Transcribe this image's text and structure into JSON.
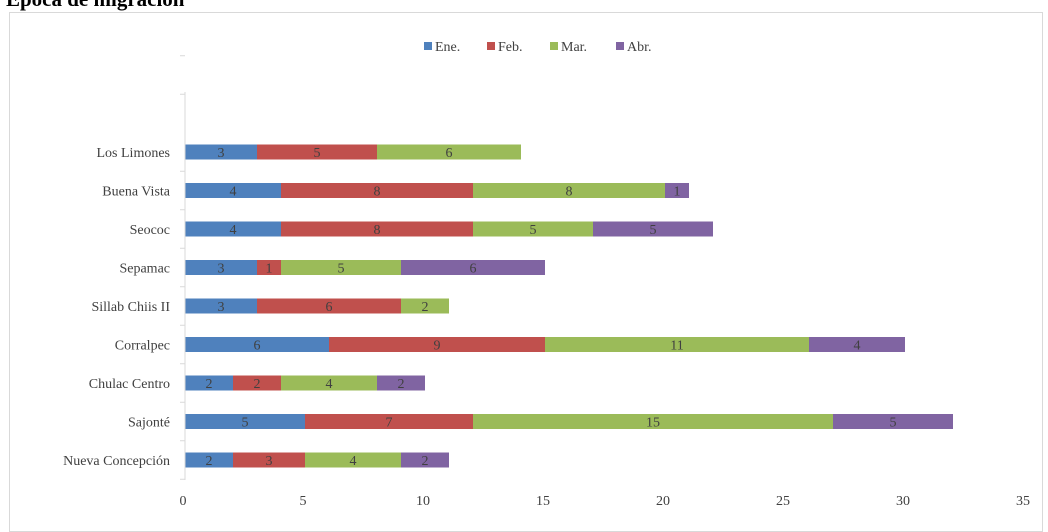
{
  "chart_data": {
    "type": "bar",
    "orientation": "horizontal",
    "stacked": true,
    "title": "Época de migración",
    "categories": [
      "Los Limones",
      "Buena Vista",
      "Seococ",
      "Sepamac",
      "Sillab Chiis II",
      "Corralpec",
      "Chulac Centro",
      "Sajonté",
      "Nueva Concepción"
    ],
    "series": [
      {
        "name": "Ene.",
        "color": "#4f81bd",
        "values": [
          3,
          4,
          4,
          3,
          3,
          6,
          2,
          5,
          2
        ]
      },
      {
        "name": "Feb.",
        "color": "#c0504d",
        "values": [
          5,
          8,
          8,
          1,
          6,
          9,
          2,
          7,
          3
        ]
      },
      {
        "name": "Mar.",
        "color": "#9bbb59",
        "values": [
          6,
          8,
          5,
          5,
          2,
          11,
          4,
          15,
          4
        ]
      },
      {
        "name": "Abr.",
        "color": "#8064a2",
        "values": [
          null,
          1,
          5,
          6,
          null,
          4,
          2,
          5,
          2
        ]
      }
    ],
    "xlim": [
      0,
      35
    ],
    "xticks": [
      0,
      5,
      10,
      15,
      20,
      25,
      30,
      35
    ],
    "grid": false,
    "legend_position": "top",
    "data_labels": true
  }
}
